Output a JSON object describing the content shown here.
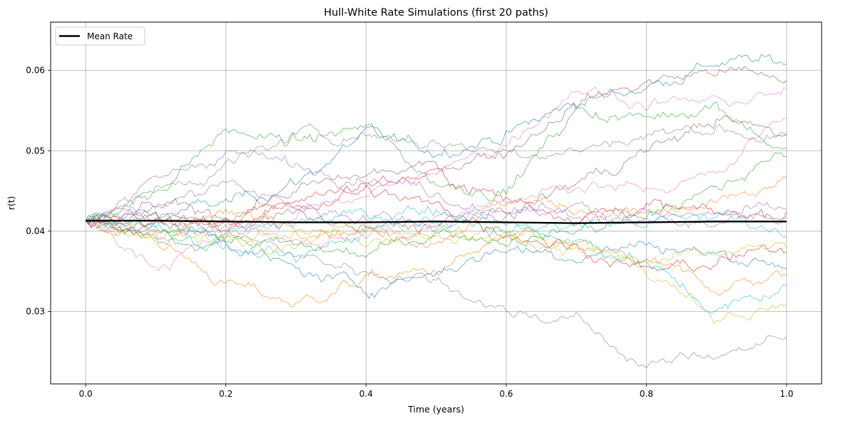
{
  "chart_data": {
    "type": "line",
    "title": "Hull-White Rate Simulations (first 20 paths)",
    "xlabel": "Time (years)",
    "ylabel": "r(t)",
    "xlim": [
      -0.05,
      1.05
    ],
    "ylim": [
      0.021,
      0.066
    ],
    "xticks": [
      0.0,
      0.2,
      0.4,
      0.6,
      0.8,
      1.0
    ],
    "xtick_labels": [
      "0.0",
      "0.2",
      "0.4",
      "0.6",
      "0.8",
      "1.0"
    ],
    "yticks": [
      0.03,
      0.04,
      0.05,
      0.06
    ],
    "ytick_labels": [
      "0.03",
      "0.04",
      "0.05",
      "0.06"
    ],
    "grid": true,
    "legend": {
      "position": "upper-left",
      "entries": [
        "Mean Rate"
      ]
    },
    "mean_series": {
      "name": "Mean Rate",
      "color": "#000000",
      "x": [
        0.0,
        0.1,
        0.2,
        0.3,
        0.4,
        0.5,
        0.6,
        0.7,
        0.8,
        0.9,
        1.0
      ],
      "values": [
        0.0413,
        0.0413,
        0.0412,
        0.0411,
        0.0411,
        0.0412,
        0.0411,
        0.041,
        0.0411,
        0.0412,
        0.0412
      ]
    },
    "paths_x": [
      0.0,
      0.1,
      0.2,
      0.3,
      0.4,
      0.5,
      0.6,
      0.7,
      0.8,
      0.9,
      1.0
    ],
    "paths": [
      {
        "color": "#1f77b4",
        "values": [
          0.0413,
          0.042,
          0.0435,
          0.046,
          0.052,
          0.05,
          0.052,
          0.056,
          0.058,
          0.061,
          0.061
        ]
      },
      {
        "color": "#ff7f0e",
        "values": [
          0.0413,
          0.039,
          0.0335,
          0.031,
          0.034,
          0.035,
          0.039,
          0.038,
          0.036,
          0.033,
          0.0345
        ]
      },
      {
        "color": "#2ca02c",
        "values": [
          0.0413,
          0.045,
          0.0525,
          0.051,
          0.053,
          0.046,
          0.045,
          0.055,
          0.054,
          0.056,
          0.0495
        ]
      },
      {
        "color": "#d62728",
        "values": [
          0.0413,
          0.042,
          0.0405,
          0.044,
          0.046,
          0.047,
          0.044,
          0.042,
          0.043,
          0.042,
          0.0425
        ]
      },
      {
        "color": "#9467bd",
        "values": [
          0.0413,
          0.046,
          0.05,
          0.048,
          0.047,
          0.045,
          0.042,
          0.043,
          0.0415,
          0.042,
          0.0425
        ]
      },
      {
        "color": "#8c564b",
        "values": [
          0.0413,
          0.043,
          0.042,
          0.045,
          0.047,
          0.048,
          0.05,
          0.056,
          0.0585,
          0.06,
          0.059
        ]
      },
      {
        "color": "#e377c2",
        "values": [
          0.0413,
          0.036,
          0.039,
          0.042,
          0.045,
          0.047,
          0.051,
          0.058,
          0.056,
          0.056,
          0.057
        ]
      },
      {
        "color": "#7f7f7f",
        "values": [
          0.0413,
          0.042,
          0.04,
          0.037,
          0.035,
          0.034,
          0.03,
          0.029,
          0.023,
          0.025,
          0.0265
        ]
      },
      {
        "color": "#bcbd22",
        "values": [
          0.0413,
          0.0395,
          0.039,
          0.04,
          0.0385,
          0.039,
          0.04,
          0.038,
          0.0355,
          0.029,
          0.0305
        ]
      },
      {
        "color": "#17becf",
        "values": [
          0.0413,
          0.0405,
          0.038,
          0.036,
          0.0405,
          0.042,
          0.041,
          0.039,
          0.036,
          0.03,
          0.033
        ]
      },
      {
        "color": "#1f77b4",
        "values": [
          0.0413,
          0.041,
          0.039,
          0.035,
          0.033,
          0.035,
          0.038,
          0.037,
          0.0385,
          0.037,
          0.036
        ]
      },
      {
        "color": "#ff7f0e",
        "values": [
          0.0413,
          0.04,
          0.042,
          0.041,
          0.04,
          0.039,
          0.044,
          0.043,
          0.042,
          0.043,
          0.046
        ]
      },
      {
        "color": "#2ca02c",
        "values": [
          0.0413,
          0.0385,
          0.039,
          0.038,
          0.037,
          0.04,
          0.039,
          0.04,
          0.042,
          0.045,
          0.05
        ]
      },
      {
        "color": "#d62728",
        "values": [
          0.0413,
          0.0405,
          0.041,
          0.043,
          0.045,
          0.043,
          0.04,
          0.038,
          0.035,
          0.036,
          0.038
        ]
      },
      {
        "color": "#9467bd",
        "values": [
          0.0413,
          0.043,
          0.046,
          0.043,
          0.042,
          0.041,
          0.043,
          0.042,
          0.042,
          0.041,
          0.042
        ]
      },
      {
        "color": "#8c564b",
        "values": [
          0.0413,
          0.0415,
          0.041,
          0.042,
          0.04,
          0.041,
          0.042,
          0.046,
          0.05,
          0.054,
          0.052
        ]
      },
      {
        "color": "#e377c2",
        "values": [
          0.0413,
          0.04,
          0.04,
          0.0385,
          0.04,
          0.041,
          0.044,
          0.046,
          0.045,
          0.047,
          0.055
        ]
      },
      {
        "color": "#7f7f7f",
        "values": [
          0.0413,
          0.045,
          0.048,
          0.052,
          0.052,
          0.051,
          0.05,
          0.05,
          0.052,
          0.053,
          0.051
        ]
      },
      {
        "color": "#bcbd22",
        "values": [
          0.0413,
          0.04,
          0.039,
          0.039,
          0.041,
          0.04,
          0.039,
          0.038,
          0.036,
          0.037,
          0.038
        ]
      },
      {
        "color": "#17becf",
        "values": [
          0.0413,
          0.041,
          0.0395,
          0.041,
          0.042,
          0.043,
          0.04,
          0.041,
          0.041,
          0.042,
          0.04
        ]
      }
    ]
  }
}
